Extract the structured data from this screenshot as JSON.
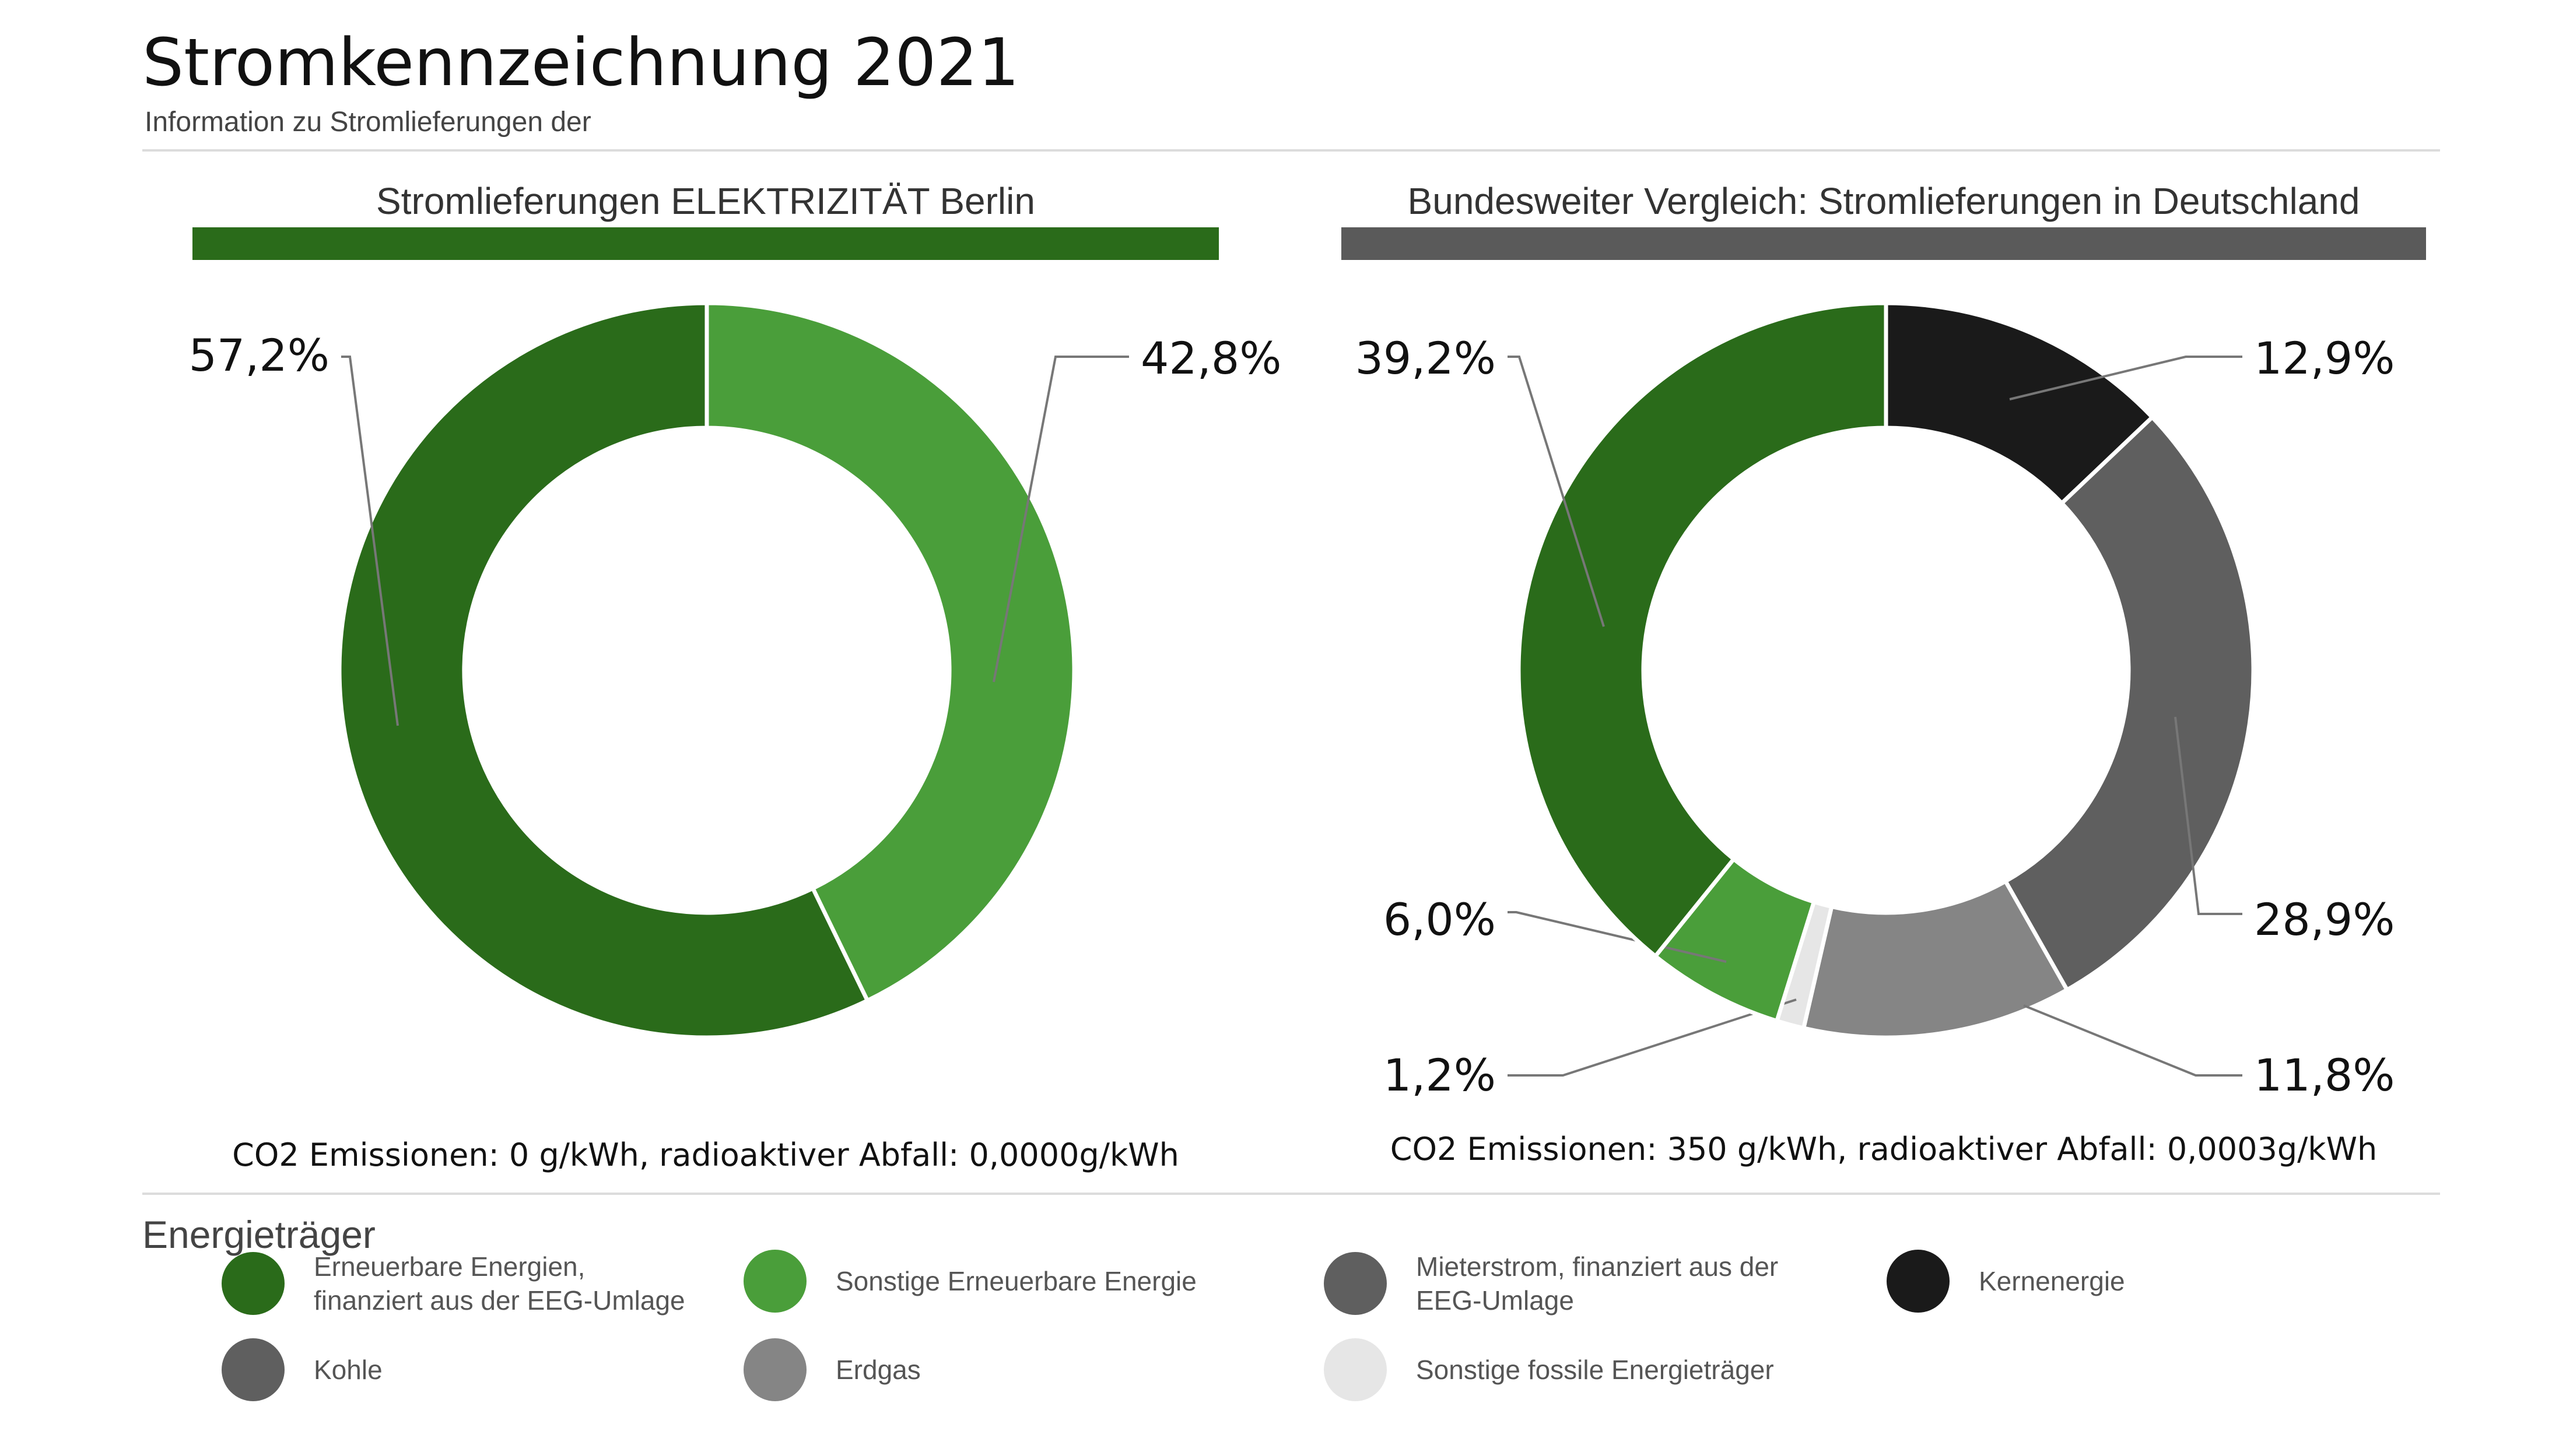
{
  "header": {
    "title": "Stromkennzeichnung 2021",
    "subtitle": "Information zu Stromlieferungen der"
  },
  "colors": {
    "accent_green": "#2a6b1a",
    "light_green": "#4a9e3a",
    "panel_bar_right": "#5a5a5a",
    "kohle_mieterstrom": "#5f5f5f",
    "erdgas": "#858585",
    "sonstige_fossile": "#e6e6e6",
    "kernenergie": "#1a1a1a",
    "divider": "#dcdcdc"
  },
  "chart_data": [
    {
      "type": "pie",
      "title": "Stromlieferungen ELEKTRIZITÄT Berlin",
      "caption": "CO2 Emissionen: 0 g/kWh, radioaktiver Abfall: 0,0000g/kWh",
      "slices": [
        {
          "name": "Sonstige Erneuerbare Energie",
          "value": 42.8,
          "label": "42,8%",
          "color": "#4a9e3a"
        },
        {
          "name": "Erneuerbare Energien, finanziert aus der EEG-Umlage",
          "value": 57.2,
          "label": "57,2%",
          "color": "#2a6b1a"
        }
      ]
    },
    {
      "type": "pie",
      "title": "Bundesweiter Vergleich: Stromlieferungen in Deutschland",
      "caption": "CO2 Emissionen: 350 g/kWh, radioaktiver Abfall: 0,0003g/kWh",
      "slices": [
        {
          "name": "Kernenergie",
          "value": 12.9,
          "label": "12,9%",
          "color": "#1a1a1a"
        },
        {
          "name": "Kohle",
          "value": 28.9,
          "label": "28,9%",
          "color": "#5f5f5f"
        },
        {
          "name": "Erdgas",
          "value": 11.8,
          "label": "11,8%",
          "color": "#858585"
        },
        {
          "name": "Sonstige fossile Energieträger",
          "value": 1.2,
          "label": "1,2%",
          "color": "#e6e6e6"
        },
        {
          "name": "Sonstige Erneuerbare Energie",
          "value": 6.0,
          "label": "6,0%",
          "color": "#4a9e3a"
        },
        {
          "name": "Erneuerbare Energien, finanziert aus der EEG-Umlage",
          "value": 39.2,
          "label": "39,2%",
          "color": "#2a6b1a"
        }
      ]
    }
  ],
  "legend": {
    "title": "Energieträger",
    "items": [
      {
        "label": "Erneuerbare Energien,\nfinanziert aus der EEG-Umlage",
        "color": "#2a6b1a"
      },
      {
        "label": "Sonstige Erneuerbare Energie",
        "color": "#4a9e3a"
      },
      {
        "label": "Mieterstrom, finanziert aus der\nEEG-Umlage",
        "color": "#5f5f5f"
      },
      {
        "label": "Kernenergie",
        "color": "#1a1a1a"
      },
      {
        "label": "Kohle",
        "color": "#5f5f5f"
      },
      {
        "label": "Erdgas",
        "color": "#858585"
      },
      {
        "label": "Sonstige fossile Energieträger",
        "color": "#e6e6e6"
      }
    ]
  }
}
